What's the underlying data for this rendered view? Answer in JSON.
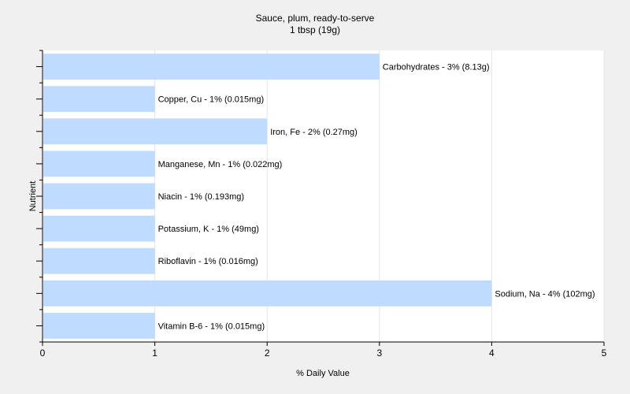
{
  "chart_data": {
    "type": "bar",
    "orientation": "horizontal",
    "title": "Sauce, plum, ready-to-serve",
    "subtitle": "1 tbsp (19g)",
    "xlabel": "% Daily Value",
    "ylabel": "Nutrient",
    "xlim": [
      0,
      5
    ],
    "xticks": [
      "0",
      "1",
      "2",
      "3",
      "4",
      "5"
    ],
    "grid": true,
    "bar_color": "#bfdbff",
    "categories": [
      "Carbohydrates",
      "Copper, Cu",
      "Iron, Fe",
      "Manganese, Mn",
      "Niacin",
      "Potassium, K",
      "Riboflavin",
      "Sodium, Na",
      "Vitamin B-6"
    ],
    "values": [
      3,
      1,
      2,
      1,
      1,
      1,
      1,
      4,
      1
    ],
    "labels": [
      "Carbohydrates - 3% (8.13g)",
      "Copper, Cu - 1% (0.015mg)",
      "Iron, Fe - 2% (0.27mg)",
      "Manganese, Mn - 1% (0.022mg)",
      "Niacin - 1% (0.193mg)",
      "Potassium, K - 1% (49mg)",
      "Riboflavin - 1% (0.016mg)",
      "Sodium, Na - 4% (102mg)",
      "Vitamin B-6 - 1% (0.015mg)"
    ]
  }
}
